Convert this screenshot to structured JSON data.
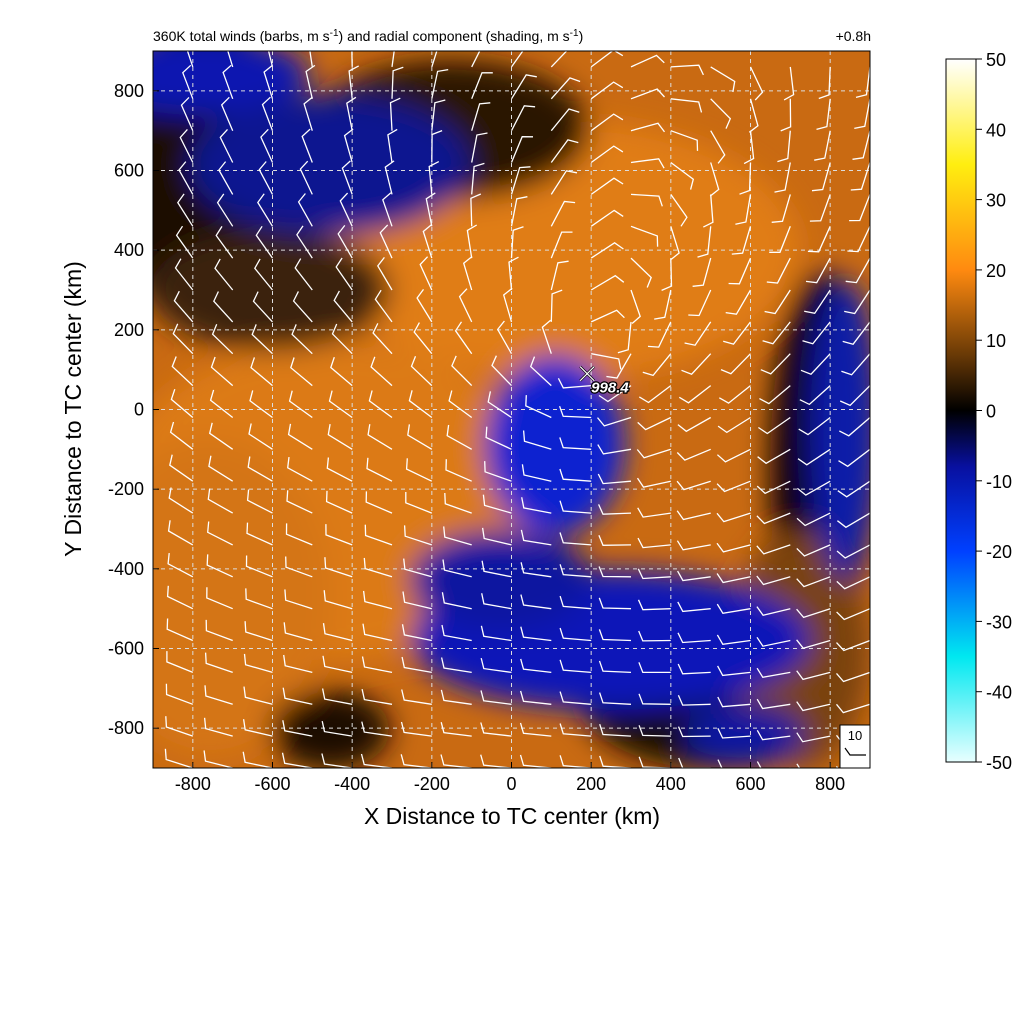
{
  "chart_data": {
    "type": "heatmap",
    "title_main": "360K total winds (barbs, m s",
    "title_sup1": "-1",
    "title_mid": ") and radial component (shading, m s",
    "title_sup2": "-1",
    "title_end": ")",
    "time_label": "+0.8h",
    "xlabel": "X Distance to TC center (km)",
    "ylabel": "Y Distance to TC center (km)",
    "xlim": [
      -900,
      900
    ],
    "ylim": [
      -900,
      900
    ],
    "xticks": [
      -800,
      -600,
      -400,
      -200,
      0,
      200,
      400,
      600,
      800
    ],
    "yticks": [
      -800,
      -600,
      -400,
      -200,
      0,
      200,
      400,
      600,
      800
    ],
    "grid": true,
    "colorbar": {
      "range": [
        -50,
        50
      ],
      "ticks": [
        50,
        40,
        30,
        20,
        10,
        0,
        -10,
        -20,
        -30,
        -40,
        -50
      ]
    },
    "center_marker": {
      "x": 190,
      "y": 90,
      "label": "998.4"
    },
    "reference_barb": {
      "label": "10"
    },
    "colors": {
      "strong_positive": "#e07a10",
      "zero": "#000000",
      "negative": "#0a1ab0",
      "barb": "#ffffff"
    }
  }
}
